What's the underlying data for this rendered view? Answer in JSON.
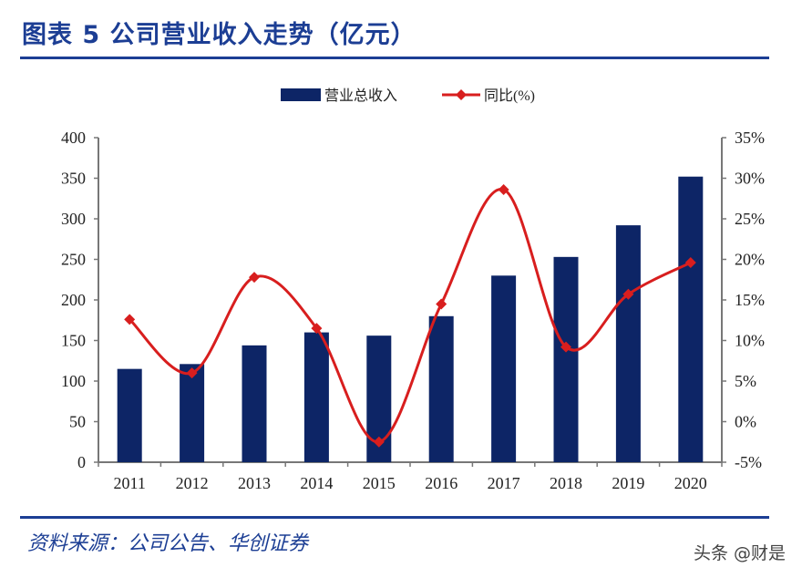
{
  "header": {
    "title": "图表 5  公司营业收入走势（亿元）"
  },
  "footer": {
    "source": "资料来源：公司公告、华创证券",
    "watermark": "头条 @财是"
  },
  "colors": {
    "bar": "#0d2566",
    "line": "#d81e1e",
    "accent": "#1c3e94"
  },
  "chart_data": {
    "type": "bar",
    "categories": [
      "2011",
      "2012",
      "2013",
      "2014",
      "2015",
      "2016",
      "2017",
      "2018",
      "2019",
      "2020"
    ],
    "series": [
      {
        "name": "营业总收入",
        "type": "bar",
        "axis": "left",
        "values": [
          115,
          121,
          144,
          160,
          156,
          180,
          230,
          253,
          292,
          352
        ]
      },
      {
        "name": "同比(%)",
        "type": "line",
        "axis": "right",
        "smooth": true,
        "marker": "diamond",
        "values": [
          12.6,
          6.0,
          17.8,
          11.5,
          -2.5,
          14.5,
          28.6,
          9.2,
          15.7,
          19.6
        ]
      }
    ],
    "y_left": {
      "range": [
        0,
        400
      ],
      "ticks": [
        "0",
        "50",
        "100",
        "150",
        "200",
        "250",
        "300",
        "350",
        "400"
      ]
    },
    "y_right": {
      "range": [
        -5,
        35
      ],
      "ticks": [
        "-5%",
        "0%",
        "5%",
        "10%",
        "15%",
        "20%",
        "25%",
        "30%",
        "35%"
      ]
    },
    "legend": "top-center",
    "grid": false
  }
}
